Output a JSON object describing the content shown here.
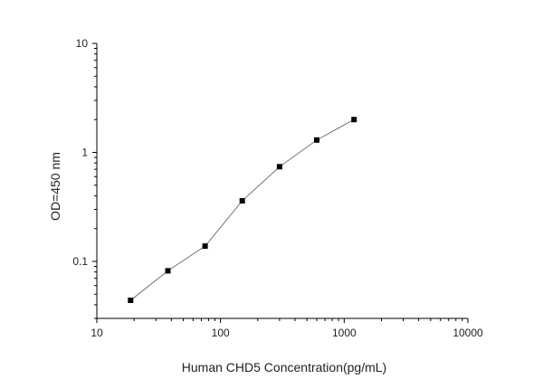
{
  "chart_data": {
    "type": "line",
    "title": "",
    "xlabel": "Human CHD5 Concentration(pg/mL)",
    "ylabel": "OD=450 nm",
    "x_scale": "log",
    "y_scale": "log",
    "xlim": [
      10,
      10000
    ],
    "ylim": [
      0.03,
      10
    ],
    "x_ticks": [
      {
        "value": 10,
        "label": "10"
      },
      {
        "value": 100,
        "label": "100"
      },
      {
        "value": 1000,
        "label": "1000"
      },
      {
        "value": 10000,
        "label": "10000"
      }
    ],
    "y_ticks": [
      {
        "value": 0.1,
        "label": "0.1"
      },
      {
        "value": 1,
        "label": "1"
      },
      {
        "value": 10,
        "label": "10"
      }
    ],
    "grid": false,
    "legend": "none",
    "marker": "square",
    "colors": {
      "line": "#555555",
      "marker": "#000000",
      "axis": "#000000"
    },
    "series": [
      {
        "x": [
          18.75,
          37.5,
          75,
          150,
          300,
          600,
          1200
        ],
        "y": [
          0.044,
          0.082,
          0.138,
          0.36,
          0.74,
          1.3,
          2.0
        ]
      }
    ]
  }
}
